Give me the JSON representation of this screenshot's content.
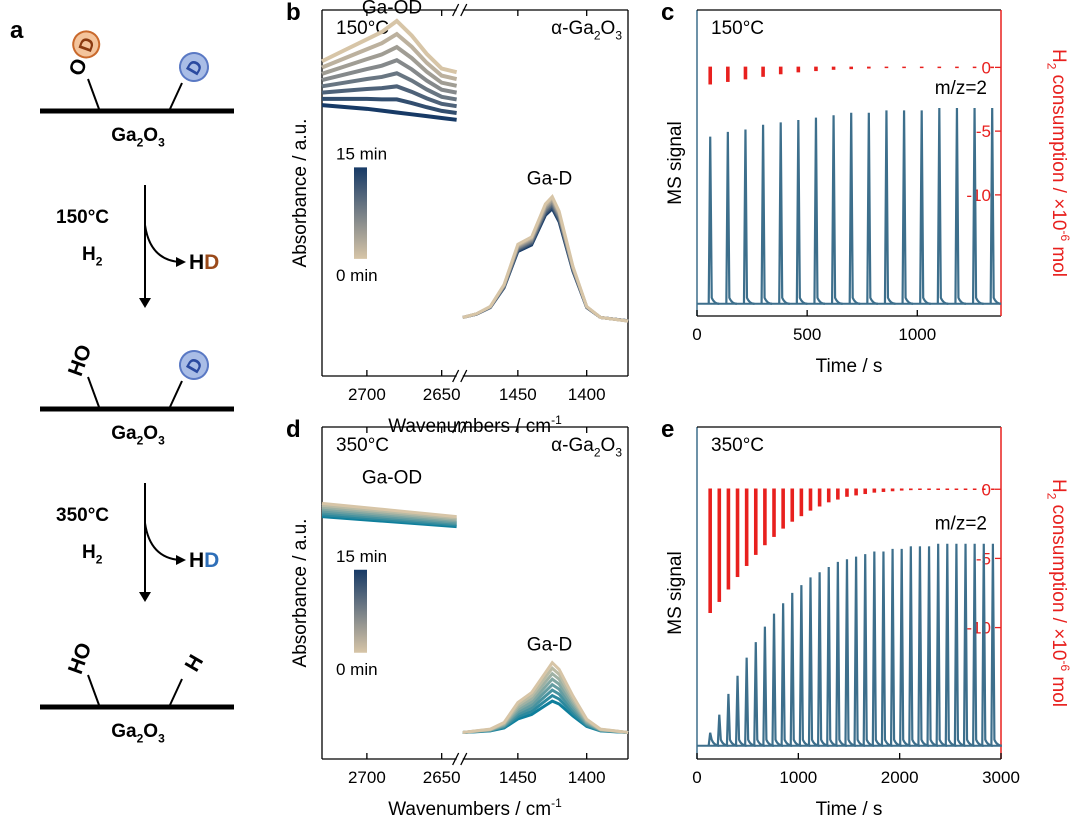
{
  "panel_a": {
    "letter": "a",
    "substrate": "Ga2O3",
    "states": [
      {
        "left": "OD",
        "right": "D"
      },
      {
        "left": "HO",
        "right": "D"
      },
      {
        "left": "HO",
        "right": "H"
      }
    ],
    "step1": {
      "temp": "150°C",
      "gas": "H2",
      "product_prefix": "H",
      "product_suffix": "D"
    },
    "step2": {
      "temp": "350°C",
      "gas": "H2",
      "product_prefix": "H",
      "product_suffix": "D"
    },
    "colors": {
      "od_circle": "#f4c49c",
      "od_ring": "#c9692c",
      "od_letter": "#8a3a10",
      "d_circle": "#a9bde6",
      "d_ring": "#5a79c4",
      "d_letter": "#2a4aa0",
      "hd_brown": "#9a4a1a",
      "hd_blue": "#2f6fb8"
    }
  },
  "chart_data": [
    {
      "panel": "b",
      "type": "line",
      "temperature": "150°C",
      "sample": "α-Ga2O3",
      "ylabel": "Absorbance / a.u.",
      "xlabel": "Wavenumbers / cm-1",
      "xlim_left": [
        2730,
        2640
      ],
      "xlim_right": [
        1490,
        1370
      ],
      "xticks_left": [
        2700,
        2650
      ],
      "xticks_right": [
        1450,
        1400
      ],
      "peak_labels": [
        "Ga-OD",
        "Ga-D"
      ],
      "colorbar": {
        "top": "15 min",
        "bottom": "0 min",
        "colors": [
          "#173a66",
          "#d7c5a7"
        ]
      },
      "od_region": {
        "x": [
          2730,
          2715,
          2700,
          2690,
          2680,
          2670,
          2660,
          2650,
          2640
        ],
        "final": [
          0.86,
          0.89,
          0.92,
          0.94,
          0.97,
          0.93,
          0.88,
          0.84,
          0.83
        ],
        "initial": [
          0.74,
          0.735,
          0.73,
          0.725,
          0.72,
          0.715,
          0.71,
          0.705,
          0.7
        ]
      },
      "gad_region": {
        "x": [
          1490,
          1480,
          1470,
          1460,
          1450,
          1440,
          1430,
          1425,
          1420,
          1410,
          1400,
          1390,
          1380,
          1370
        ],
        "peak_curve": [
          0.16,
          0.17,
          0.19,
          0.25,
          0.36,
          0.38,
          0.47,
          0.49,
          0.45,
          0.3,
          0.19,
          0.16,
          0.155,
          0.15
        ]
      },
      "series_count": 8
    },
    {
      "panel": "c",
      "type": "line",
      "temperature": "150°C",
      "xlabel": "Time / s",
      "ylabel_left": "MS signal",
      "ylabel_right": "H2 consumption / ×10-6 mol",
      "xlim": [
        0,
        1380
      ],
      "xticks": [
        0,
        500,
        1000
      ],
      "right_ylim": [
        -19.5,
        4.5
      ],
      "right_yticks": [
        0,
        -5,
        -10
      ],
      "signal_label": "m/z=2",
      "pulse_times": [
        60,
        140,
        220,
        300,
        380,
        460,
        540,
        620,
        700,
        780,
        860,
        940,
        1020,
        1100,
        1180,
        1260,
        1340
      ],
      "pulse_heights": [
        0.7,
        0.72,
        0.73,
        0.75,
        0.76,
        0.77,
        0.78,
        0.79,
        0.8,
        0.8,
        0.81,
        0.81,
        0.81,
        0.82,
        0.82,
        0.82,
        0.82
      ],
      "h2_consumption": [
        -1.4,
        -1.2,
        -1.0,
        -0.8,
        -0.6,
        -0.45,
        -0.35,
        -0.25,
        -0.2,
        -0.15,
        -0.1,
        -0.08,
        -0.06,
        -0.05,
        -0.04,
        -0.03,
        -0.02
      ],
      "colors": {
        "signal": "#3d6f8c",
        "h2": "#e8201e"
      }
    },
    {
      "panel": "d",
      "type": "line",
      "temperature": "350°C",
      "sample": "α-Ga2O3",
      "ylabel": "Absorbance / a.u.",
      "xlabel": "Wavenumbers / cm-1",
      "xlim_left": [
        2730,
        2640
      ],
      "xlim_right": [
        1490,
        1370
      ],
      "xticks_left": [
        2700,
        2650
      ],
      "xticks_right": [
        1450,
        1400
      ],
      "peak_labels": [
        "Ga-OD",
        "Ga-D"
      ],
      "colorbar": {
        "top": "15 min",
        "bottom": "0 min",
        "colors": [
          "#173a66",
          "#d7c5a7"
        ]
      },
      "od_region": {
        "x": [
          2730,
          2640
        ],
        "top": [
          0.77,
          0.73
        ],
        "bottom": [
          0.73,
          0.7
        ]
      },
      "gad_region": {
        "x": [
          1490,
          1480,
          1470,
          1460,
          1450,
          1440,
          1430,
          1425,
          1420,
          1410,
          1400,
          1390,
          1380,
          1370
        ],
        "peak_curve": [
          0.08,
          0.085,
          0.09,
          0.11,
          0.17,
          0.2,
          0.26,
          0.29,
          0.27,
          0.19,
          0.12,
          0.09,
          0.085,
          0.08
        ]
      },
      "series_count": 8
    },
    {
      "panel": "e",
      "type": "line",
      "temperature": "350°C",
      "xlabel": "Time / s",
      "ylabel_left": "MS signal",
      "ylabel_right": "H2 consumption / ×10-6 mol",
      "xlim": [
        0,
        3000
      ],
      "xticks": [
        0,
        1000,
        2000,
        3000
      ],
      "right_ylim": [
        -19.5,
        4.5
      ],
      "right_yticks": [
        0,
        -5,
        -10
      ],
      "signal_label": "m/z=2",
      "pulse_times": [
        130,
        220,
        310,
        400,
        490,
        580,
        670,
        760,
        850,
        940,
        1030,
        1120,
        1210,
        1300,
        1390,
        1480,
        1570,
        1660,
        1750,
        1840,
        1930,
        2020,
        2110,
        2200,
        2290,
        2380,
        2470,
        2560,
        2650,
        2740,
        2830,
        2920
      ],
      "pulse_heights": [
        0.05,
        0.12,
        0.2,
        0.27,
        0.34,
        0.4,
        0.46,
        0.51,
        0.55,
        0.59,
        0.62,
        0.65,
        0.67,
        0.69,
        0.71,
        0.72,
        0.73,
        0.74,
        0.75,
        0.75,
        0.76,
        0.76,
        0.77,
        0.77,
        0.77,
        0.78,
        0.78,
        0.78,
        0.78,
        0.78,
        0.78,
        0.78
      ],
      "h2_consumption": [
        -9.0,
        -8.2,
        -7.3,
        -6.4,
        -5.6,
        -4.8,
        -4.1,
        -3.5,
        -2.9,
        -2.4,
        -2.0,
        -1.6,
        -1.3,
        -1.0,
        -0.8,
        -0.6,
        -0.5,
        -0.4,
        -0.3,
        -0.25,
        -0.2,
        -0.15,
        -0.12,
        -0.1,
        -0.08,
        -0.06,
        -0.05,
        -0.04,
        -0.03,
        -0.02,
        -0.02,
        -0.01
      ],
      "colors": {
        "signal": "#3d6f8c",
        "h2": "#e8201e"
      }
    }
  ],
  "panel_letters": [
    "b",
    "c",
    "d",
    "e"
  ]
}
